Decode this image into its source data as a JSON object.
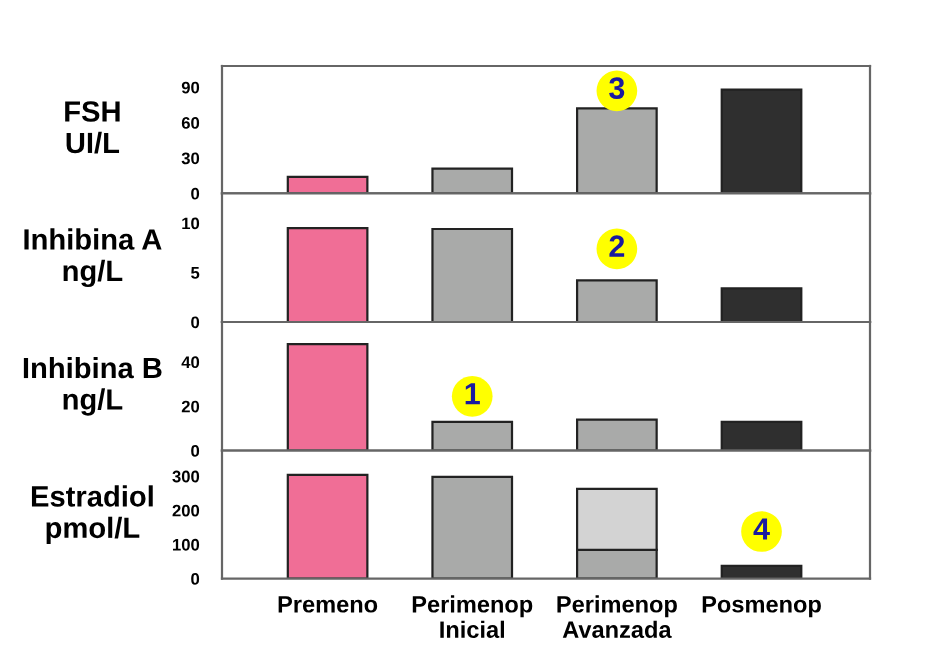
{
  "chart_data": [
    {
      "type": "bar",
      "ylabel": "FSH\nUI/L",
      "categories": [
        "Premeno",
        "Perimenop\nInicial",
        "Perimenop\nAvanzada",
        "Posmenop"
      ],
      "series": [
        {
          "colors": [
            "#f06e96",
            "#a9aaa9",
            "#a9aaa9",
            "#2f2f2f"
          ],
          "values": [
            14,
            21,
            72,
            88
          ]
        }
      ],
      "ylim": [
        0,
        108
      ],
      "yticks": [
        0,
        30,
        60,
        90
      ],
      "tick_labels": "y",
      "grid": false,
      "legend": false,
      "annotations": [
        {
          "text": "3",
          "x": "Perimenop\nAvanzada",
          "y": 87
        }
      ]
    },
    {
      "type": "bar",
      "ylabel": "Inhibina A\nng/L",
      "categories": [
        "Premeno",
        "Perimenop\nInicial",
        "Perimenop\nAvanzada",
        "Posmenop"
      ],
      "series": [
        {
          "colors": [
            "#f06e96",
            "#a9aaa9",
            "#a9aaa9",
            "#2f2f2f"
          ],
          "values": [
            9.5,
            9.4,
            4.2,
            3.4
          ]
        }
      ],
      "ylim": [
        0,
        13
      ],
      "yticks": [
        0,
        5,
        10
      ],
      "tick_labels": "y",
      "grid": false,
      "legend": false,
      "annotations": [
        {
          "text": "2",
          "x": "Perimenop\nAvanzada",
          "y": 7.4
        }
      ]
    },
    {
      "type": "bar",
      "ylabel": "Inhibina B\nng/L",
      "categories": [
        "Premeno",
        "Perimenop\nInicial",
        "Perimenop\nAvanzada",
        "Posmenop"
      ],
      "series": [
        {
          "colors": [
            "#f06e96",
            "#a9aaa9",
            "#a9aaa9",
            "#2f2f2f"
          ],
          "values": [
            48,
            13,
            14,
            13
          ]
        }
      ],
      "ylim": [
        0,
        58
      ],
      "yticks": [
        0,
        20,
        40
      ],
      "tick_labels": "y",
      "grid": false,
      "legend": false,
      "annotations": [
        {
          "text": "1",
          "x": "Perimenop\nInicial",
          "y": 24.5
        }
      ]
    },
    {
      "type": "bar",
      "ylabel": "Estradiol\npmol/L",
      "categories": [
        "Premeno",
        "Perimenop\nInicial",
        "Perimenop\nAvanzada",
        "Posmenop"
      ],
      "stacked": true,
      "series": [
        {
          "colors": [
            "#f06e96",
            "#a9aaa9",
            "#a9aaa9",
            "#2f2f2f"
          ],
          "values": [
            304,
            298,
            84,
            37
          ]
        },
        {
          "color": "#d3d3d3",
          "values": [
            null,
            null,
            179,
            null
          ]
        }
      ],
      "ylim": [
        0,
        375
      ],
      "yticks": [
        0,
        100,
        200,
        300
      ],
      "grid": false,
      "legend": false,
      "annotations": [
        {
          "text": "4",
          "x": "Posmenop",
          "y": 138
        }
      ]
    }
  ]
}
